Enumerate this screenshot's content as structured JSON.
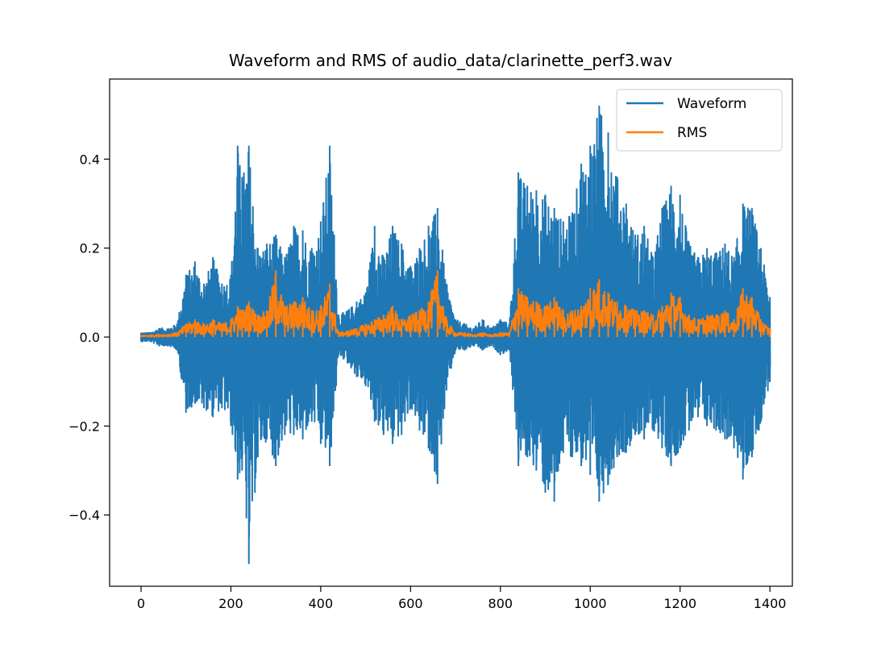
{
  "chart_data": {
    "type": "line",
    "title": "Waveform and RMS of audio_data/clarinette_perf3.wav",
    "xlabel": "",
    "ylabel": "",
    "xlim": [
      -70,
      1450
    ],
    "ylim": [
      -0.56,
      0.58
    ],
    "grid": false,
    "legend_position": "top-right",
    "x_ticks": [
      {
        "value": 0,
        "label": "0"
      },
      {
        "value": 200,
        "label": "200"
      },
      {
        "value": 400,
        "label": "400"
      },
      {
        "value": 600,
        "label": "600"
      },
      {
        "value": 800,
        "label": "800"
      },
      {
        "value": 1000,
        "label": "1000"
      },
      {
        "value": 1200,
        "label": "1200"
      },
      {
        "value": 1400,
        "label": "1400"
      }
    ],
    "y_ticks": [
      {
        "value": -0.4,
        "label": "−0.4"
      },
      {
        "value": -0.2,
        "label": "−0.2"
      },
      {
        "value": 0.0,
        "label": "0.0"
      },
      {
        "value": 0.2,
        "label": "0.2"
      },
      {
        "value": 0.4,
        "label": "0.4"
      }
    ],
    "series": [
      {
        "name": "Waveform",
        "color": "#1f77b4",
        "x": [
          0,
          20,
          40,
          60,
          80,
          100,
          120,
          140,
          160,
          180,
          200,
          215,
          225,
          240,
          260,
          280,
          300,
          320,
          340,
          360,
          380,
          400,
          420,
          440,
          460,
          480,
          500,
          520,
          540,
          560,
          580,
          600,
          620,
          640,
          660,
          680,
          700,
          720,
          740,
          760,
          780,
          800,
          820,
          840,
          860,
          880,
          900,
          920,
          940,
          960,
          980,
          1000,
          1020,
          1040,
          1060,
          1080,
          1100,
          1120,
          1140,
          1160,
          1180,
          1200,
          1220,
          1240,
          1260,
          1280,
          1300,
          1320,
          1340,
          1360,
          1380,
          1400
        ],
        "max": [
          0.01,
          0.01,
          0.02,
          0.02,
          0.03,
          0.14,
          0.17,
          0.12,
          0.18,
          0.12,
          0.14,
          0.43,
          0.36,
          0.43,
          0.2,
          0.21,
          0.23,
          0.18,
          0.25,
          0.24,
          0.2,
          0.26,
          0.43,
          0.05,
          0.06,
          0.08,
          0.1,
          0.25,
          0.18,
          0.25,
          0.21,
          0.16,
          0.2,
          0.25,
          0.29,
          0.12,
          0.04,
          0.03,
          0.02,
          0.04,
          0.02,
          0.04,
          0.03,
          0.37,
          0.34,
          0.33,
          0.32,
          0.29,
          0.26,
          0.28,
          0.39,
          0.43,
          0.52,
          0.46,
          0.36,
          0.3,
          0.23,
          0.25,
          0.18,
          0.29,
          0.34,
          0.32,
          0.21,
          0.18,
          0.2,
          0.19,
          0.21,
          0.18,
          0.3,
          0.29,
          0.2,
          0.09
        ],
        "min": [
          -0.01,
          -0.01,
          -0.02,
          -0.02,
          -0.03,
          -0.17,
          -0.15,
          -0.16,
          -0.18,
          -0.16,
          -0.2,
          -0.32,
          -0.3,
          -0.51,
          -0.27,
          -0.23,
          -0.29,
          -0.22,
          -0.22,
          -0.23,
          -0.19,
          -0.24,
          -0.29,
          -0.04,
          -0.06,
          -0.09,
          -0.11,
          -0.19,
          -0.22,
          -0.24,
          -0.22,
          -0.16,
          -0.21,
          -0.25,
          -0.33,
          -0.12,
          -0.03,
          -0.03,
          -0.02,
          -0.03,
          -0.02,
          -0.04,
          -0.03,
          -0.29,
          -0.27,
          -0.3,
          -0.35,
          -0.37,
          -0.26,
          -0.27,
          -0.29,
          -0.31,
          -0.37,
          -0.33,
          -0.27,
          -0.26,
          -0.22,
          -0.23,
          -0.21,
          -0.25,
          -0.29,
          -0.25,
          -0.21,
          -0.18,
          -0.2,
          -0.21,
          -0.23,
          -0.25,
          -0.32,
          -0.27,
          -0.19,
          -0.1
        ]
      },
      {
        "name": "RMS",
        "color": "#ff7f0e",
        "x": [
          0,
          20,
          40,
          60,
          80,
          100,
          120,
          140,
          160,
          180,
          200,
          215,
          225,
          240,
          260,
          280,
          300,
          320,
          340,
          360,
          380,
          400,
          420,
          440,
          460,
          480,
          500,
          520,
          540,
          560,
          580,
          600,
          620,
          640,
          660,
          680,
          700,
          720,
          740,
          760,
          780,
          800,
          820,
          840,
          860,
          880,
          900,
          920,
          940,
          960,
          980,
          1000,
          1020,
          1040,
          1060,
          1080,
          1100,
          1120,
          1140,
          1160,
          1180,
          1200,
          1220,
          1240,
          1260,
          1280,
          1300,
          1320,
          1340,
          1360,
          1380,
          1400
        ],
        "values": [
          0.004,
          0.005,
          0.006,
          0.007,
          0.01,
          0.03,
          0.04,
          0.03,
          0.04,
          0.03,
          0.04,
          0.07,
          0.06,
          0.08,
          0.05,
          0.06,
          0.15,
          0.07,
          0.08,
          0.09,
          0.06,
          0.07,
          0.12,
          0.01,
          0.015,
          0.02,
          0.03,
          0.04,
          0.05,
          0.07,
          0.04,
          0.05,
          0.06,
          0.08,
          0.15,
          0.04,
          0.01,
          0.01,
          0.005,
          0.01,
          0.005,
          0.01,
          0.01,
          0.11,
          0.09,
          0.08,
          0.07,
          0.09,
          0.06,
          0.06,
          0.07,
          0.11,
          0.13,
          0.1,
          0.08,
          0.07,
          0.06,
          0.06,
          0.05,
          0.07,
          0.1,
          0.09,
          0.05,
          0.04,
          0.05,
          0.05,
          0.06,
          0.04,
          0.11,
          0.09,
          0.04,
          0.02
        ]
      }
    ]
  }
}
